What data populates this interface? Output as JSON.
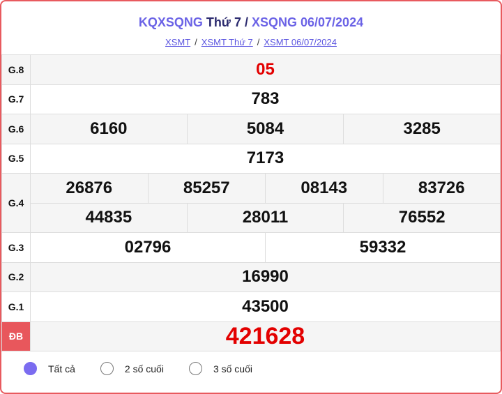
{
  "header": {
    "title_a": "KQXSQNG",
    "title_b": "Thứ 7 /",
    "title_c": "XSQNG 06/07/2024",
    "breadcrumb": [
      "XSMT",
      "XSMT Thứ 7",
      "XSMT 06/07/2024"
    ]
  },
  "prizes": [
    {
      "label": "G.8",
      "numbers": [
        "05"
      ]
    },
    {
      "label": "G.7",
      "numbers": [
        "783"
      ]
    },
    {
      "label": "G.6",
      "numbers": [
        "6160",
        "5084",
        "3285"
      ]
    },
    {
      "label": "G.5",
      "numbers": [
        "7173"
      ]
    },
    {
      "label": "G.4",
      "numbers": [
        "26876",
        "85257",
        "08143",
        "83726",
        "44835",
        "28011",
        "76552"
      ]
    },
    {
      "label": "G.3",
      "numbers": [
        "02796",
        "59332"
      ]
    },
    {
      "label": "G.2",
      "numbers": [
        "16990"
      ]
    },
    {
      "label": "G.1",
      "numbers": [
        "43500"
      ]
    },
    {
      "label": "ĐB",
      "numbers": [
        "421628"
      ]
    }
  ],
  "filters": {
    "options": [
      "Tất cả",
      "2 số cuối",
      "3 số cuối"
    ],
    "selected": "Tất cả"
  },
  "colors": {
    "accent": "#6b63e6",
    "special": "#e30000",
    "db_label_bg": "#e8575c"
  }
}
